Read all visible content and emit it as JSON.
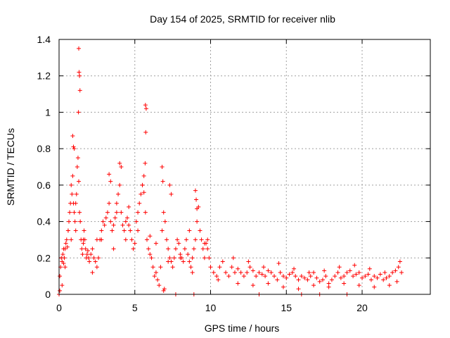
{
  "chart_data": {
    "type": "scatter",
    "title": "Day 154 of 2025, SRMTID for receiver nlib",
    "xlabel": "GPS time / hours",
    "ylabel": "SRMTID / TECUs",
    "xlim": [
      0,
      24.5
    ],
    "ylim": [
      0,
      1.4
    ],
    "xticks": [
      0,
      5,
      10,
      15,
      20
    ],
    "xtick_labels": [
      "0",
      "5",
      "10",
      "15",
      "20"
    ],
    "yticks": [
      0,
      0.2,
      0.4,
      0.6,
      0.8,
      1.0,
      1.2,
      1.4
    ],
    "ytick_labels": [
      "0",
      "0.2",
      "0.4",
      "0.6",
      "0.8",
      "1",
      "1.2",
      "1.4"
    ],
    "grid": true,
    "marker": "+",
    "color": "#ff0000",
    "series": [
      {
        "name": "SRMTID",
        "x": [
          0.05,
          0.1,
          0.15,
          0.2,
          0.25,
          0.3,
          0.35,
          0.4,
          0.45,
          0.5,
          0.55,
          0.6,
          0.65,
          0.7,
          0.75,
          0.8,
          0.85,
          0.9,
          0.95,
          1.0,
          1.05,
          1.1,
          1.15,
          1.2,
          1.25,
          1.3,
          1.35,
          1.4,
          1.45,
          1.5,
          1.55,
          1.6,
          1.65,
          1.7,
          1.75,
          1.8,
          1.85,
          1.9,
          1.95,
          2.0,
          2.1,
          2.2,
          2.3,
          2.4,
          2.5,
          2.6,
          2.7,
          2.8,
          2.9,
          3.0,
          3.1,
          3.2,
          3.3,
          3.4,
          3.5,
          3.6,
          3.7,
          3.8,
          3.9,
          4.0,
          4.1,
          4.2,
          4.3,
          4.4,
          4.5,
          4.6,
          4.7,
          4.8,
          4.9,
          5.0,
          5.1,
          5.2,
          5.3,
          5.4,
          5.5,
          5.6,
          5.7,
          5.8,
          5.9,
          6.0,
          6.1,
          6.2,
          6.3,
          6.4,
          6.5,
          6.6,
          6.7,
          6.8,
          6.9,
          7.0,
          7.1,
          7.2,
          7.3,
          7.4,
          7.5,
          7.6,
          7.7,
          7.8,
          7.9,
          8.0,
          8.1,
          8.2,
          8.3,
          8.4,
          8.5,
          8.6,
          8.7,
          8.8,
          8.9,
          9.0,
          9.1,
          9.2,
          9.3,
          9.4,
          9.5,
          9.6,
          9.7,
          9.8,
          9.9,
          10.0,
          10.2,
          10.4,
          10.6,
          10.8,
          11.0,
          11.2,
          11.4,
          11.6,
          11.8,
          12.0,
          12.2,
          12.4,
          12.6,
          12.8,
          13.0,
          13.2,
          13.4,
          13.6,
          13.8,
          14.0,
          14.2,
          14.4,
          14.6,
          14.8,
          15.0,
          15.2,
          15.4,
          15.6,
          15.8,
          16.0,
          16.2,
          16.4,
          16.6,
          16.8,
          17.0,
          17.2,
          17.4,
          17.6,
          17.8,
          18.0,
          18.2,
          18.4,
          18.6,
          18.8,
          19.0,
          19.2,
          19.4,
          19.6,
          19.8,
          20.0,
          20.2,
          20.4,
          20.6,
          20.8,
          21.0,
          21.2,
          21.4,
          21.6,
          21.8,
          22.0,
          22.2,
          22.4,
          22.6,
          1.3,
          1.35,
          1.32,
          1.38,
          1.28,
          5.7,
          5.75,
          5.72,
          5.68,
          0.9,
          0.95,
          1.0,
          3.3,
          3.4,
          4.0,
          4.1,
          5.5,
          5.6,
          6.8,
          6.85,
          7.3,
          7.4,
          9.0,
          9.05,
          9.1,
          0.3,
          0.6,
          1.6,
          2.5,
          3.8,
          4.6,
          6.0,
          8.6,
          9.6,
          11.5,
          12.5,
          13.5,
          14.5,
          15.5,
          16.5,
          17.5,
          18.5,
          19.5,
          20.5,
          21.5,
          22.5,
          0.2,
          0.4,
          0.8,
          1.1,
          2.2,
          2.8,
          3.6,
          4.4,
          5.2,
          6.4,
          7.2,
          8.0,
          8.8,
          9.8,
          10.5,
          11.8,
          12.8,
          13.8,
          14.8,
          15.8,
          16.8,
          17.8,
          18.8,
          19.8,
          20.8,
          21.8,
          22.3,
          0.0,
          0.05,
          6.9,
          6.95,
          7.7,
          8.9,
          13.2,
          16.0,
          17.2,
          19.0
        ],
        "y": [
          0.1,
          0.15,
          0.2,
          0.18,
          0.22,
          0.17,
          0.2,
          0.25,
          0.28,
          0.3,
          0.26,
          0.35,
          0.4,
          0.45,
          0.5,
          0.6,
          0.55,
          0.65,
          0.5,
          0.45,
          0.4,
          0.5,
          0.55,
          0.7,
          0.75,
          0.62,
          0.45,
          0.4,
          0.3,
          0.25,
          0.22,
          0.28,
          0.35,
          0.3,
          0.25,
          0.2,
          0.22,
          0.24,
          0.2,
          0.18,
          0.22,
          0.25,
          0.2,
          0.18,
          0.15,
          0.2,
          0.3,
          0.35,
          0.4,
          0.38,
          0.42,
          0.45,
          0.5,
          0.4,
          0.35,
          0.38,
          0.42,
          0.5,
          0.55,
          0.6,
          0.45,
          0.38,
          0.35,
          0.4,
          0.42,
          0.38,
          0.35,
          0.3,
          0.25,
          0.28,
          0.4,
          0.45,
          0.5,
          0.55,
          0.6,
          0.65,
          0.45,
          0.3,
          0.25,
          0.22,
          0.2,
          0.15,
          0.1,
          0.12,
          0.08,
          0.05,
          0.15,
          0.35,
          0.45,
          0.4,
          0.3,
          0.25,
          0.2,
          0.18,
          0.15,
          0.2,
          0.25,
          0.3,
          0.28,
          0.22,
          0.2,
          0.18,
          0.25,
          0.3,
          0.22,
          0.18,
          0.15,
          0.2,
          0.25,
          0.3,
          0.4,
          0.48,
          0.35,
          0.3,
          0.25,
          0.2,
          0.28,
          0.25,
          0.2,
          0.15,
          0.12,
          0.1,
          0.15,
          0.18,
          0.12,
          0.1,
          0.15,
          0.12,
          0.14,
          0.12,
          0.1,
          0.12,
          0.15,
          0.13,
          0.1,
          0.12,
          0.11,
          0.1,
          0.13,
          0.12,
          0.1,
          0.08,
          0.12,
          0.1,
          0.09,
          0.11,
          0.12,
          0.1,
          0.08,
          0.1,
          0.09,
          0.08,
          0.1,
          0.12,
          0.09,
          0.07,
          0.08,
          0.1,
          0.06,
          0.08,
          0.1,
          0.12,
          0.09,
          0.1,
          0.12,
          0.13,
          0.1,
          0.11,
          0.12,
          0.09,
          0.1,
          0.11,
          0.08,
          0.1,
          0.09,
          0.11,
          0.08,
          0.09,
          0.1,
          0.12,
          0.13,
          0.15,
          0.12,
          1.35,
          1.2,
          1.22,
          1.12,
          1.0,
          1.04,
          1.02,
          0.89,
          0.72,
          0.87,
          0.81,
          0.8,
          0.66,
          0.62,
          0.72,
          0.7,
          0.6,
          0.56,
          0.7,
          0.62,
          0.6,
          0.55,
          0.57,
          0.52,
          0.47,
          0.25,
          0.35,
          0.3,
          0.3,
          0.45,
          0.48,
          0.32,
          0.35,
          0.28,
          0.2,
          0.18,
          0.15,
          0.17,
          0.14,
          0.12,
          0.13,
          0.15,
          0.16,
          0.14,
          0.12,
          0.18,
          0.05,
          0.15,
          0.3,
          0.35,
          0.12,
          0.3,
          0.25,
          0.3,
          0.35,
          0.28,
          0.18,
          0.2,
          0.12,
          0.3,
          0.08,
          0.06,
          0.05,
          0.06,
          0.04,
          0.03,
          0.05,
          0.04,
          0.06,
          0.05,
          0.04,
          0.05,
          0.07,
          0.0,
          0.02,
          0.02,
          0.03,
          0.0,
          0.0,
          0.0,
          0.0,
          0.0,
          0.0
        ]
      }
    ]
  }
}
